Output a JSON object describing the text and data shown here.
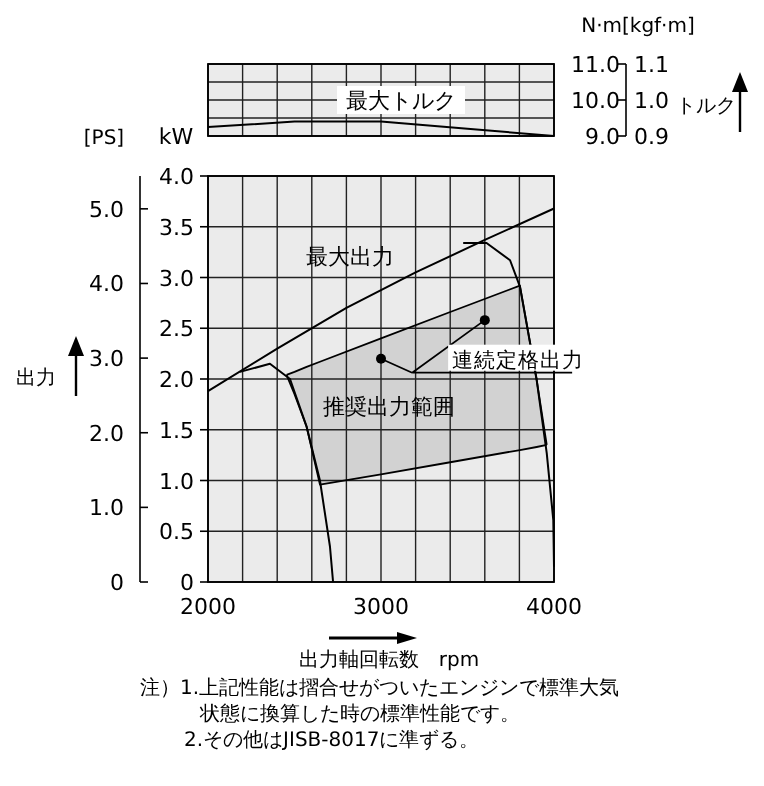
{
  "chart_data": [
    {
      "type": "line",
      "ylabel": "N·m",
      "y2label": "[kgf·m]",
      "annotations": [
        "トルク"
      ],
      "xlim": [
        2000,
        4000
      ],
      "xticks": [
        2000,
        {
          "value": 2200,
          "label": null
        },
        {
          "value": 2400,
          "label": null
        },
        {
          "value": 2600,
          "label": null
        },
        {
          "value": 2800,
          "label": null
        },
        3000,
        {
          "value": 3200,
          "label": null
        },
        {
          "value": 3400,
          "label": null
        },
        {
          "value": 3600,
          "label": null
        },
        {
          "value": 3800,
          "label": null
        },
        4000
      ],
      "ylim": [
        9.0,
        11.0
      ],
      "yticks": [
        {
          "value": 9,
          "label": "9.0"
        },
        {
          "value": 9.5,
          "label": null
        },
        {
          "value": 10,
          "label": "10.0"
        },
        {
          "value": 10.5,
          "label": null
        },
        {
          "value": 11,
          "label": "11.0"
        }
      ],
      "y2lim": [
        0.9,
        1.1
      ],
      "y2ticks": [
        0.9,
        {
          "value": 1,
          "label": "1.0"
        },
        1.1
      ],
      "grid": true,
      "tick_labels": "y",
      "series": [
        {
          "name": "最大トルク",
          "color": "#000000",
          "x": [
            2000,
            2500,
            3000,
            3500,
            4000
          ],
          "values": [
            9.25,
            9.4,
            9.4,
            9.2,
            9.0
          ]
        }
      ]
    },
    {
      "type": "line",
      "xlabel": "出力軸回転数　rpm",
      "ylabel": "kW",
      "y2label": "[PS]",
      "annotations": [
        "出力",
        "注）1.上記性能は摺合せがついたエンジンで標準大気状態に換算した時の標準性能です。",
        "2.その他はJISB-8017に準ずる。"
      ],
      "xlim": [
        2000,
        4000
      ],
      "xticks": [
        2000,
        {
          "value": 2200,
          "label": null
        },
        {
          "value": 2400,
          "label": null
        },
        {
          "value": 2600,
          "label": null
        },
        {
          "value": 2800,
          "label": null
        },
        3000,
        {
          "value": 3200,
          "label": null
        },
        {
          "value": 3400,
          "label": null
        },
        {
          "value": 3600,
          "label": null
        },
        {
          "value": 3800,
          "label": null
        },
        4000
      ],
      "ylim": [
        0,
        4.0
      ],
      "yticks": [
        0,
        0.5,
        {
          "value": 1,
          "label": "1.0"
        },
        1.5,
        {
          "value": 2,
          "label": "2.0"
        },
        2.5,
        {
          "value": 3,
          "label": "3.0"
        },
        3.5,
        {
          "value": 4,
          "label": "4.0"
        }
      ],
      "y2lim": [
        0,
        5.44
      ],
      "y2ticks": [
        0,
        {
          "value": 1,
          "label": "1.0"
        },
        {
          "value": 2,
          "label": "2.0"
        },
        {
          "value": 3,
          "label": "3.0"
        },
        {
          "value": 4,
          "label": "4.0"
        },
        {
          "value": 5,
          "label": "5.0"
        }
      ],
      "grid": true,
      "stacked": true,
      "series": [
        {
          "type": "area",
          "color": "#ebebeb",
          "x": [
            2454,
            2500,
            2570,
            2647,
            3000,
            3400,
            3803,
            3900,
            3958
          ],
          "values": [
            2.04,
            1.85,
            1.53,
            0.96,
            1.06,
            1.18,
            1.3,
            1.33,
            1.35
          ]
        },
        {
          "name": "推奨出力範囲",
          "type": "area",
          "color": "#d2d2d2",
          "x": [
            2454,
            2500,
            2570,
            2647,
            3000,
            3400,
            3803,
            3900,
            3958
          ],
          "values": [
            0,
            0.22,
            0.59,
            1.21,
            1.34,
            1.48,
            1.62,
            0.66,
            0
          ]
        },
        {
          "name": "最大出力",
          "color": "#000000",
          "x": [
            2000,
            2400,
            2800,
            3200,
            3600,
            4000
          ],
          "values": [
            1.88,
            2.3,
            2.7,
            3.05,
            3.37,
            3.68
          ]
        },
        {
          "color": "#000000",
          "x": [
            2185,
            2358,
            2474,
            2570,
            2647,
            2705,
            2723
          ],
          "values": [
            2.07,
            2.15,
            2.0,
            1.53,
            1.0,
            0.35,
            0
          ]
        },
        {
          "color": "#000000",
          "x": [
            3475,
            3610,
            3746,
            3803,
            3900,
            3958,
            3996,
            4000
          ],
          "values": [
            3.34,
            3.34,
            3.17,
            2.91,
            1.99,
            1.27,
            0.61,
            0.15
          ]
        },
        {
          "name": "連続定格出力",
          "type": "scatter",
          "marker": "circle",
          "color": "#000000",
          "x": [
            3000,
            3600
          ],
          "values": [
            2.2,
            2.58
          ]
        }
      ]
    }
  ]
}
